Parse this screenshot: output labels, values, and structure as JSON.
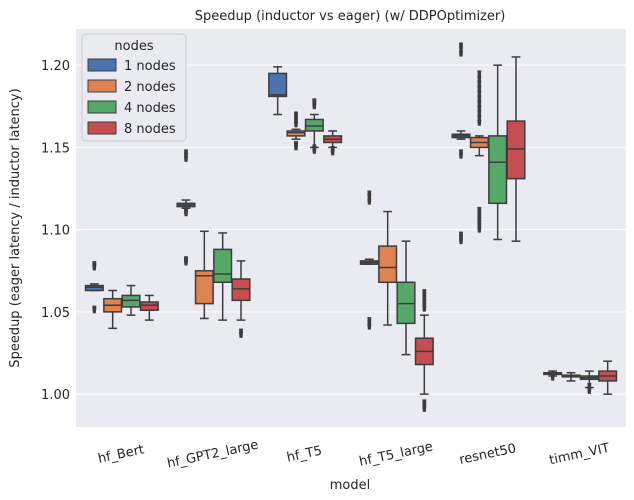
{
  "chart_data": {
    "type": "box",
    "title": "Speedup (inductor vs eager) (w/ DDPOptimizer)",
    "xlabel": "model",
    "ylabel": "Speedup (eager latency / inductor latency)",
    "ylim": [
      0.98,
      1.222
    ],
    "yticks": [
      1.0,
      1.05,
      1.1,
      1.15,
      1.2
    ],
    "ytick_labels": [
      "1.00",
      "1.05",
      "1.10",
      "1.15",
      "1.20"
    ],
    "grid": true,
    "legend_position": "top-left",
    "legend_title": "nodes",
    "categories": [
      "hf_Bert",
      "hf_GPT2_large",
      "hf_T5",
      "hf_T5_large",
      "resnet50",
      "timm_VIT"
    ],
    "series": [
      {
        "name": "1 nodes",
        "color": "#4c72b0",
        "boxes": [
          {
            "whislo": 1.063,
            "q1": 1.063,
            "med": 1.065,
            "q3": 1.066,
            "whishi": 1.067,
            "fliers": [
              1.051,
              1.052,
              1.077,
              1.078,
              1.079
            ]
          },
          {
            "whislo": 1.113,
            "q1": 1.114,
            "med": 1.115,
            "q3": 1.116,
            "whishi": 1.118,
            "fliers": [
              1.08,
              1.081,
              1.082,
              1.11,
              1.111,
              1.143,
              1.145,
              1.147
            ]
          },
          {
            "whislo": 1.17,
            "q1": 1.181,
            "med": 1.182,
            "q3": 1.195,
            "whishi": 1.199,
            "fliers": []
          },
          {
            "whislo": 1.079,
            "q1": 1.079,
            "med": 1.08,
            "q3": 1.081,
            "whishi": 1.082,
            "fliers": [
              1.041,
              1.043,
              1.045,
              1.117,
              1.12,
              1.122
            ]
          },
          {
            "whislo": 1.155,
            "q1": 1.156,
            "med": 1.157,
            "q3": 1.158,
            "whishi": 1.16,
            "fliers": [
              1.093,
              1.095,
              1.097,
              1.145,
              1.147,
              1.207,
              1.21,
              1.212
            ]
          },
          {
            "whislo": 1.011,
            "q1": 1.012,
            "med": 1.0125,
            "q3": 1.013,
            "whishi": 1.014,
            "fliers": [
              1.01
            ]
          }
        ]
      },
      {
        "name": "2 nodes",
        "color": "#dd8452",
        "boxes": [
          {
            "whislo": 1.04,
            "q1": 1.05,
            "med": 1.054,
            "q3": 1.058,
            "whishi": 1.063,
            "fliers": []
          },
          {
            "whislo": 1.046,
            "q1": 1.055,
            "med": 1.072,
            "q3": 1.075,
            "whishi": 1.099,
            "fliers": []
          },
          {
            "whislo": 1.155,
            "q1": 1.157,
            "med": 1.159,
            "q3": 1.16,
            "whishi": 1.161,
            "fliers": [
              1.15,
              1.151,
              1.152,
              1.164,
              1.166,
              1.168,
              1.17
            ]
          },
          {
            "whislo": 1.042,
            "q1": 1.068,
            "med": 1.077,
            "q3": 1.09,
            "whishi": 1.111,
            "fliers": []
          },
          {
            "whislo": 1.145,
            "q1": 1.15,
            "med": 1.153,
            "q3": 1.156,
            "whishi": 1.157,
            "fliers": [
              1.1,
              1.102,
              1.104,
              1.106,
              1.108,
              1.11,
              1.112,
              1.165,
              1.168,
              1.171,
              1.174,
              1.177,
              1.18,
              1.183,
              1.186,
              1.189,
              1.192,
              1.195
            ]
          },
          {
            "whislo": 1.008,
            "q1": 1.0105,
            "med": 1.011,
            "q3": 1.0115,
            "whishi": 1.013,
            "fliers": []
          }
        ]
      },
      {
        "name": "4 nodes",
        "color": "#55a868",
        "boxes": [
          {
            "whislo": 1.048,
            "q1": 1.053,
            "med": 1.057,
            "q3": 1.06,
            "whishi": 1.066,
            "fliers": []
          },
          {
            "whislo": 1.045,
            "q1": 1.068,
            "med": 1.073,
            "q3": 1.088,
            "whishi": 1.098,
            "fliers": []
          },
          {
            "whislo": 1.15,
            "q1": 1.16,
            "med": 1.163,
            "q3": 1.167,
            "whishi": 1.17,
            "fliers": [
              1.148,
              1.149,
              1.15,
              1.175,
              1.176,
              1.177,
              1.178
            ]
          },
          {
            "whislo": 1.024,
            "q1": 1.043,
            "med": 1.055,
            "q3": 1.068,
            "whishi": 1.093,
            "fliers": []
          },
          {
            "whislo": 1.094,
            "q1": 1.116,
            "med": 1.141,
            "q3": 1.157,
            "whishi": 1.2,
            "fliers": []
          },
          {
            "whislo": 1.004,
            "q1": 1.009,
            "med": 1.01,
            "q3": 1.011,
            "whishi": 1.014,
            "fliers": [
              1.002,
              1.003,
              1.005
            ]
          }
        ]
      },
      {
        "name": "8 nodes",
        "color": "#c44e52",
        "boxes": [
          {
            "whislo": 1.045,
            "q1": 1.051,
            "med": 1.054,
            "q3": 1.056,
            "whishi": 1.06,
            "fliers": []
          },
          {
            "whislo": 1.045,
            "q1": 1.057,
            "med": 1.064,
            "q3": 1.07,
            "whishi": 1.081,
            "fliers": [
              1.036,
              1.038
            ]
          },
          {
            "whislo": 1.15,
            "q1": 1.153,
            "med": 1.155,
            "q3": 1.157,
            "whishi": 1.16,
            "fliers": [
              1.147,
              1.149
            ]
          },
          {
            "whislo": 1.0,
            "q1": 1.018,
            "med": 1.026,
            "q3": 1.034,
            "whishi": 1.048,
            "fliers": [
              0.991,
              0.993,
              0.995,
              1.052,
              1.054,
              1.056,
              1.058,
              1.06,
              1.062
            ]
          },
          {
            "whislo": 1.093,
            "q1": 1.131,
            "med": 1.149,
            "q3": 1.166,
            "whishi": 1.205,
            "fliers": []
          },
          {
            "whislo": 1.0,
            "q1": 1.008,
            "med": 1.011,
            "q3": 1.014,
            "whishi": 1.02,
            "fliers": []
          }
        ]
      }
    ]
  }
}
